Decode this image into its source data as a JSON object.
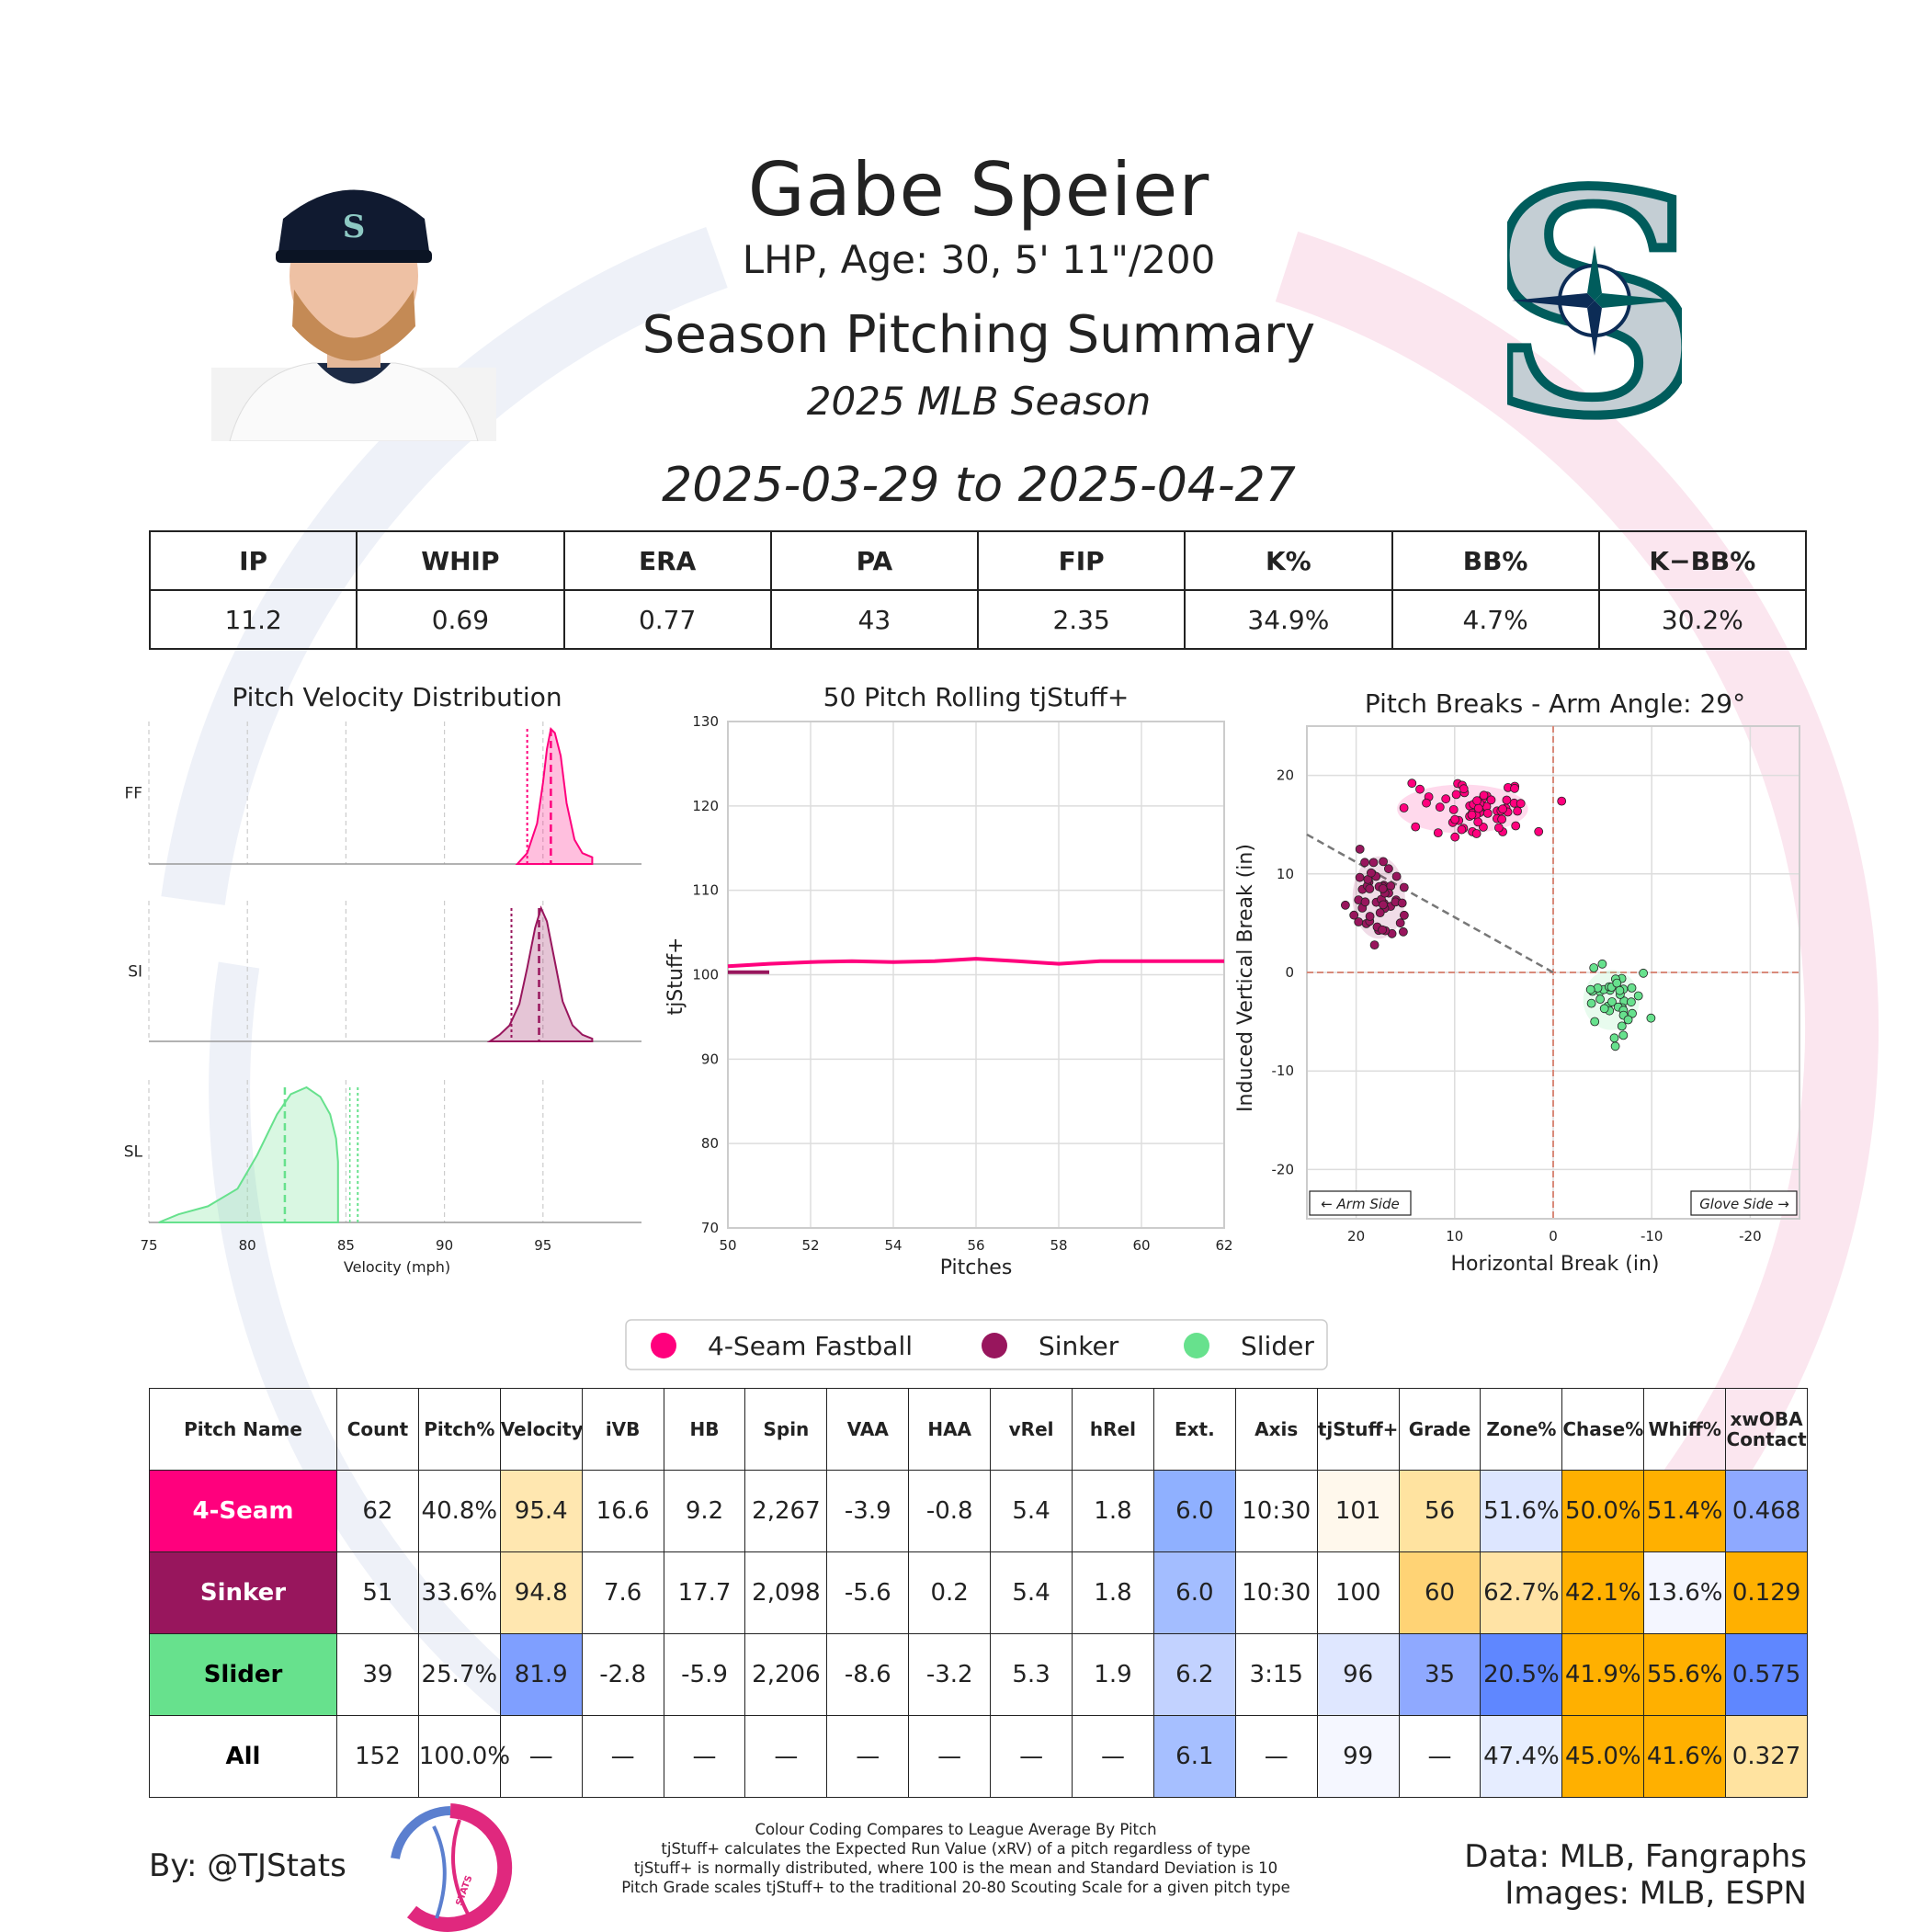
{
  "header": {
    "player_name": "Gabe Speier",
    "player_bio": "LHP, Age: 30, 5' 11\"/200",
    "report_title": "Season Pitching Summary",
    "season_label": "2025 MLB Season",
    "date_range": "2025-03-29 to 2025-04-27"
  },
  "colors": {
    "four_seam": "#ff007d",
    "sinker": "#98165d",
    "slider": "#67e18d",
    "team_navy": "#0c2c56",
    "team_teal": "#005c5c",
    "team_silver": "#c4ced4"
  },
  "icons": {
    "headshot": "player-headshot-icon",
    "team_logo": "seattle-mariners-logo-icon",
    "brand": "tjstats-logo-icon"
  },
  "stat_summary": {
    "headers": [
      "IP",
      "WHIP",
      "ERA",
      "PA",
      "FIP",
      "K%",
      "BB%",
      "K−BB%"
    ],
    "values": [
      "11.2",
      "0.69",
      "0.77",
      "43",
      "2.35",
      "34.9%",
      "4.7%",
      "30.2%"
    ]
  },
  "chart_data": [
    {
      "type": "area",
      "title": "Pitch Velocity Distribution",
      "xlabel": "Velocity (mph)",
      "xlim": [
        75,
        100
      ],
      "xticks": [
        75,
        80,
        85,
        90,
        95
      ],
      "grid": true,
      "series": [
        {
          "name": "FF",
          "mean": 95.4,
          "league_avg": 94.2,
          "x": [
            93.7,
            94.2,
            94.7,
            95.0,
            95.2,
            95.4,
            95.6,
            95.9,
            96.2,
            96.6,
            97.0,
            97.5
          ],
          "density": [
            0.0,
            0.08,
            0.3,
            0.6,
            0.85,
            1.0,
            0.97,
            0.8,
            0.45,
            0.18,
            0.08,
            0.05
          ]
        },
        {
          "name": "SI",
          "mean": 94.8,
          "league_avg": 93.4,
          "x": [
            92.3,
            92.8,
            93.3,
            93.8,
            94.2,
            94.6,
            94.9,
            95.2,
            95.6,
            96.0,
            96.5,
            97.0,
            97.5
          ],
          "density": [
            0.0,
            0.05,
            0.12,
            0.28,
            0.55,
            0.85,
            1.0,
            0.9,
            0.6,
            0.3,
            0.12,
            0.05,
            0.02
          ]
        },
        {
          "name": "SL",
          "mean": 81.9,
          "league_avg": 85.6,
          "league_avg_2": 85.2,
          "x": [
            75.5,
            76.5,
            78.0,
            79.5,
            80.5,
            81.5,
            82.2,
            83.0,
            83.7,
            84.2,
            84.5,
            84.6
          ],
          "density": [
            0.0,
            0.06,
            0.12,
            0.25,
            0.5,
            0.8,
            0.95,
            1.0,
            0.93,
            0.8,
            0.62,
            0.45
          ]
        }
      ]
    },
    {
      "type": "line",
      "title": "50 Pitch Rolling tjStuff+",
      "xlabel": "Pitches",
      "ylabel": "tjStuff+",
      "xlim": [
        50,
        62
      ],
      "ylim": [
        70,
        130
      ],
      "xticks": [
        50,
        52,
        54,
        56,
        58,
        60,
        62
      ],
      "yticks": [
        70,
        80,
        90,
        100,
        110,
        120,
        130
      ],
      "grid": true,
      "series": [
        {
          "name": "4-Seam Fastball",
          "x": [
            50,
            51,
            52,
            53,
            54,
            55,
            56,
            57,
            58,
            59,
            60,
            61,
            62
          ],
          "y": [
            101,
            101.3,
            101.5,
            101.6,
            101.5,
            101.6,
            101.9,
            101.6,
            101.3,
            101.6,
            101.6,
            101.6,
            101.6
          ]
        },
        {
          "name": "Sinker",
          "x": [
            50,
            51
          ],
          "y": [
            100.3,
            100.3
          ]
        }
      ]
    },
    {
      "type": "scatter",
      "title": "Pitch Breaks - Arm Angle: 29°",
      "xlabel": "Horizontal Break (in)",
      "ylabel": "Induced Vertical Break (in)",
      "xlim": [
        25,
        -25
      ],
      "ylim": [
        -25,
        25
      ],
      "xticks": [
        20,
        10,
        0,
        -10,
        -20
      ],
      "yticks": [
        20,
        10,
        0,
        -10,
        -20
      ],
      "grid": true,
      "annotations": [
        "← Arm Side",
        "Glove Side →"
      ],
      "arm_angle_line": [
        [
          25,
          14
        ],
        [
          0,
          0
        ]
      ],
      "series": [
        {
          "name": "4-Seam Fastball",
          "center": [
            9.2,
            16.6
          ],
          "spread": [
            3.5,
            1.3
          ],
          "count": 62
        },
        {
          "name": "Sinker",
          "center": [
            17.7,
            7.6
          ],
          "spread": [
            1.4,
            2.2
          ],
          "count": 51
        },
        {
          "name": "Slider",
          "center": [
            -5.9,
            -2.8
          ],
          "spread": [
            1.5,
            1.6
          ],
          "count": 39
        }
      ]
    }
  ],
  "legend": [
    "4-Seam Fastball",
    "Sinker",
    "Slider"
  ],
  "pitch_table": {
    "headers": [
      "Pitch Name",
      "Count",
      "Pitch%",
      "Velocity",
      "iVB",
      "HB",
      "Spin",
      "VAA",
      "HAA",
      "vRel",
      "hRel",
      "Ext.",
      "Axis",
      "tjStuff+",
      "Grade",
      "Zone%",
      "Chase%",
      "Whiff%",
      "xwOBA Contact"
    ],
    "rows": [
      {
        "name": "4-Seam",
        "cells": [
          "62",
          "40.8%",
          "95.4",
          "16.6",
          "9.2",
          "2,267",
          "-3.9",
          "-0.8",
          "5.4",
          "1.8",
          "6.0",
          "10:30",
          "101",
          "56",
          "51.6%",
          "50.0%",
          "51.4%",
          "0.468"
        ],
        "shades": [
          "",
          "",
          "#ffe7b0",
          "",
          "",
          "",
          "",
          "",
          "",
          "",
          "#8fb0ff",
          "",
          "#fff8ec",
          "#ffe3a0",
          "#dde6ff",
          "#ffb000",
          "#ffb000",
          "#8ea9ff"
        ]
      },
      {
        "name": "Sinker",
        "cells": [
          "51",
          "33.6%",
          "94.8",
          "7.6",
          "17.7",
          "2,098",
          "-5.6",
          "0.2",
          "5.4",
          "1.8",
          "6.0",
          "10:30",
          "100",
          "60",
          "62.7%",
          "42.1%",
          "13.6%",
          "0.129"
        ],
        "shades": [
          "",
          "",
          "#ffe7b0",
          "",
          "",
          "",
          "",
          "",
          "",
          "",
          "#a3bdff",
          "",
          "",
          "#ffd375",
          "#ffe3a5",
          "#ffb000",
          "#f4f6ff",
          "#ffb000"
        ]
      },
      {
        "name": "Slider",
        "cells": [
          "39",
          "25.7%",
          "81.9",
          "-2.8",
          "-5.9",
          "2,206",
          "-8.6",
          "-3.2",
          "5.3",
          "1.9",
          "6.2",
          "3:15",
          "96",
          "35",
          "20.5%",
          "41.9%",
          "55.6%",
          "0.575"
        ],
        "shades": [
          "",
          "",
          "#7f9fff",
          "",
          "",
          "",
          "",
          "",
          "",
          "",
          "#c2d2ff",
          "",
          "#dfe7ff",
          "#8fa9ff",
          "#5f87ff",
          "#ffb000",
          "#ffb000",
          "#5f87ff"
        ]
      },
      {
        "name": "All",
        "cells": [
          "152",
          "100.0%",
          "—",
          "—",
          "—",
          "—",
          "—",
          "—",
          "—",
          "—",
          "6.1",
          "—",
          "99",
          "—",
          "47.4%",
          "45.0%",
          "41.6%",
          "0.327"
        ],
        "shades": [
          "",
          "",
          "",
          "",
          "",
          "",
          "",
          "",
          "",
          "",
          "#a6bfff",
          "",
          "#f5f7ff",
          "",
          "#e6edff",
          "#ffb000",
          "#ffb000",
          "#ffe3a0"
        ]
      }
    ]
  },
  "footer": {
    "byline": "By: @TJStats",
    "notes": [
      "Colour Coding Compares to League Average By Pitch",
      "tjStuff+ calculates the Expected Run Value (xRV) of a pitch regardless of type",
      "tjStuff+ is normally distributed, where 100 is the mean and Standard Deviation is 10",
      "Pitch Grade scales tjStuff+ to the traditional 20-80 Scouting Scale for a given pitch type"
    ],
    "credit_data": "Data: MLB, Fangraphs",
    "credit_images": "Images: MLB, ESPN",
    "brand_text": "STATS"
  }
}
